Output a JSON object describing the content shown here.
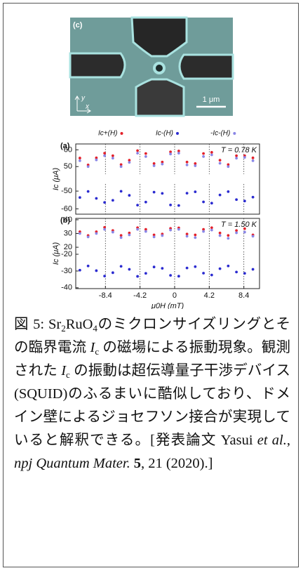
{
  "micrograph": {
    "label": "(c)",
    "scale_bar": "1 μm",
    "axis_y": "y",
    "axis_x": "x"
  },
  "chart_data": [
    {
      "type": "scatter",
      "panel_label": "(a)",
      "y_label": "Ic (μA)",
      "annotation": "T = 0.78 K",
      "x": [
        -11.5,
        -10.5,
        -9.5,
        -8.5,
        -7.5,
        -6.5,
        -5.5,
        -4.5,
        -3.5,
        -2.5,
        -1.5,
        -0.5,
        0.5,
        1.5,
        2.5,
        3.5,
        4.5,
        5.5,
        6.5,
        7.5,
        8.5,
        9.5
      ],
      "series": [
        {
          "name": "Ic+(H)",
          "color": "#e3202a",
          "values": [
            55.1,
            51,
            55.2,
            58,
            56.5,
            51.2,
            53.8,
            59.5,
            57.8,
            51.8,
            52.7,
            58.8,
            59.3,
            52.7,
            51.8,
            57.8,
            58.5,
            53.8,
            51.2,
            56.5,
            56.5,
            55.2
          ]
        },
        {
          "name": "-Ic-(H)",
          "color": "#8a86e6",
          "values": [
            53.5,
            50,
            54,
            56.5,
            55,
            50,
            52.5,
            58,
            56,
            50.5,
            51.5,
            57.5,
            58,
            51,
            50.5,
            56,
            57,
            52,
            50,
            55,
            55.5,
            53.5
          ]
        }
      ],
      "xlim": [
        -12,
        10.3
      ],
      "ylim": [
        45.5,
        63.5
      ],
      "xticks": [
        -8.4,
        -4.2,
        0,
        4.2,
        8.4
      ],
      "yticks": [
        50,
        60
      ],
      "grid": true
    },
    {
      "type": "scatter",
      "x": [
        -11.5,
        -10.5,
        -9.5,
        -8.5,
        -7.5,
        -6.5,
        -5.5,
        -4.5,
        -3.5,
        -2.5,
        -1.5,
        -0.5,
        0.5,
        1.5,
        2.5,
        3.5,
        4.5,
        5.5,
        6.5,
        7.5,
        8.5,
        9.5
      ],
      "series": [
        {
          "name": "Ic-(H)",
          "color": "#2b2bd0",
          "values": [
            -53.6,
            -50.2,
            -54.1,
            -56.4,
            -55.2,
            -50.1,
            -52.4,
            -57.9,
            -56.2,
            -50.6,
            -51.3,
            -57.8,
            -58.1,
            -51.2,
            -50.4,
            -56.1,
            -56.8,
            -52.2,
            -50.3,
            -54.8,
            -55.6,
            -53.4
          ]
        }
      ],
      "xlim": [
        -12,
        10.3
      ],
      "ylim": [
        -63,
        -46
      ],
      "xticks": [
        -8.4,
        -4.2,
        0,
        4.2,
        8.4
      ],
      "yticks": [
        -60,
        -50
      ],
      "grid": true
    },
    {
      "type": "scatter",
      "panel_label": "(b)",
      "y_label": "Ic (μA)",
      "annotation": "T = 1.50 K",
      "x": [
        -11.5,
        -10.5,
        -9.5,
        -8.5,
        -7.5,
        -6.5,
        -5.5,
        -4.5,
        -3.5,
        -2.5,
        -1.5,
        -0.5,
        0.5,
        1.5,
        2.5,
        3.5,
        4.5,
        5.5,
        6.5,
        7.5,
        8.5,
        9.5
      ],
      "series": [
        {
          "name": "Ic+(H)",
          "color": "#e3202a",
          "values": [
            31.3,
            28.5,
            31.3,
            34.5,
            32.2,
            28.6,
            30.4,
            34.2,
            33,
            29,
            29.6,
            33.7,
            34.1,
            29.6,
            29,
            33,
            34.2,
            30.4,
            28.6,
            32.2,
            33.5,
            29
          ]
        },
        {
          "name": "-Ic-(H)",
          "color": "#8a86e6",
          "values": [
            30,
            27.5,
            30,
            33,
            31,
            27,
            29,
            33,
            31.5,
            27.5,
            28.5,
            32.5,
            33,
            28,
            27,
            31.5,
            32.5,
            28.5,
            26.5,
            30.5,
            31,
            28
          ]
        }
      ],
      "xlim": [
        -12,
        10.3
      ],
      "ylim": [
        18,
        41
      ],
      "xticks": [
        -8.4,
        -4.2,
        0,
        4.2,
        8.4
      ],
      "yticks": [
        20,
        30,
        40
      ],
      "grid": true
    },
    {
      "type": "scatter",
      "x_label": "μ0H (mT)",
      "x": [
        -11.5,
        -10.5,
        -9.5,
        -8.5,
        -7.5,
        -6.5,
        -5.5,
        -4.5,
        -3.5,
        -2.5,
        -1.5,
        -0.5,
        0.5,
        1.5,
        2.5,
        3.5,
        4.5,
        5.5,
        6.5,
        7.5,
        8.5,
        9.5
      ],
      "series": [
        {
          "name": "Ic-(H)",
          "color": "#2b2bd0",
          "values": [
            -29.5,
            -27,
            -29.8,
            -33,
            -31,
            -27.2,
            -29,
            -33.2,
            -31.4,
            -27.6,
            -28.4,
            -32.6,
            -33.1,
            -28.2,
            -27.4,
            -31.3,
            -32.4,
            -28.6,
            -27,
            -30.6,
            -31.4,
            -29
          ]
        }
      ],
      "xlim": [
        -12,
        10.3
      ],
      "ylim": [
        -40.5,
        -18.3
      ],
      "xticks": [
        -8.4,
        -4.2,
        0,
        4.2,
        8.4
      ],
      "yticks": [
        -40,
        -30,
        -20
      ],
      "grid": true
    }
  ],
  "caption": [
    "図 5: Sr",
    "2",
    "RuO",
    "4",
    "のミクロンサイズリングとその臨界電流 ",
    "I",
    "c",
    " の磁場による振動現象。観測された ",
    "I",
    "c",
    " の振動は超伝導量子干渉デバイス(SQUID)のふるまいに酷似しており、ドメイン壁によるジョセフソン接合が実現していると解釈できる。[発表論文 Yasui ",
    "et al.",
    ", ",
    "npj Quantum Mater.",
    "5",
    ", 21 (2020).]"
  ]
}
